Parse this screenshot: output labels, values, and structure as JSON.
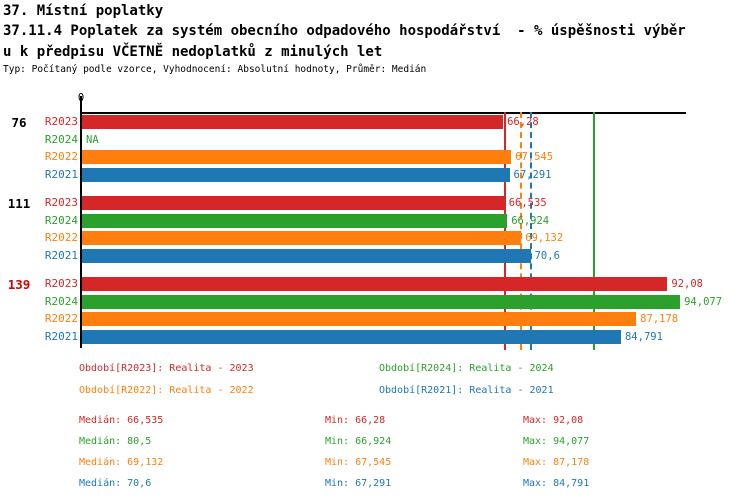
{
  "title": {
    "line1": "37. Místní poplatky",
    "line2": "37.11.4 Poplatek za systém obecního odpadového hospodářství  - % úspěšnosti výběr",
    "line3": "u k předpisu VČETNĚ nedoplatků z minulých let",
    "subtitle": "Typ: Počítaný podle vzorce, Vyhodnocení: Absolutní hodnoty, Průměr: Medián"
  },
  "colors": {
    "R2023": "#d62728",
    "R2024": "#2ca02c",
    "R2022": "#ff7f0e",
    "R2021": "#1f77b4",
    "axis": "#000000",
    "group_highlight": "#dd0000"
  },
  "chart_data": {
    "type": "bar",
    "orientation": "horizontal",
    "x_axis": {
      "tick_label": "0",
      "min": 0,
      "max": 95
    },
    "series_order": [
      "R2023",
      "R2024",
      "R2022",
      "R2021"
    ],
    "groups": [
      {
        "label": "76",
        "label_color": "#000000",
        "bars": [
          {
            "series": "R2023",
            "value": 66.28,
            "display": "66,28"
          },
          {
            "series": "R2024",
            "value": null,
            "display": "NA"
          },
          {
            "series": "R2022",
            "value": 67.545,
            "display": "67,545"
          },
          {
            "series": "R2021",
            "value": 67.291,
            "display": "67,291"
          }
        ]
      },
      {
        "label": "111",
        "label_color": "#000000",
        "bars": [
          {
            "series": "R2023",
            "value": 66.535,
            "display": "66,535"
          },
          {
            "series": "R2024",
            "value": 66.924,
            "display": "66,924"
          },
          {
            "series": "R2022",
            "value": 69.132,
            "display": "69,132"
          },
          {
            "series": "R2021",
            "value": 70.6,
            "display": "70,6"
          }
        ]
      },
      {
        "label": "139",
        "label_color": "#dd0000",
        "bars": [
          {
            "series": "R2023",
            "value": 92.08,
            "display": "92,08"
          },
          {
            "series": "R2024",
            "value": 94.077,
            "display": "94,077"
          },
          {
            "series": "R2022",
            "value": 87.178,
            "display": "87,178"
          },
          {
            "series": "R2021",
            "value": 84.791,
            "display": "84,791"
          }
        ]
      }
    ],
    "median_lines": [
      {
        "series": "R2023",
        "value": 66.535,
        "style": "solid"
      },
      {
        "series": "R2022",
        "value": 69.132,
        "style": "dashed"
      },
      {
        "series": "R2021",
        "value": 70.6,
        "style": "dashed"
      },
      {
        "series": "R2024",
        "value": 80.5,
        "style": "solid"
      }
    ]
  },
  "legend": [
    {
      "series": "R2023",
      "label": "Období[R2023]: Realita - 2023"
    },
    {
      "series": "R2024",
      "label": "Období[R2024]: Realita - 2024"
    },
    {
      "series": "R2022",
      "label": "Období[R2022]: Realita - 2022"
    },
    {
      "series": "R2021",
      "label": "Období[R2021]: Realita - 2021"
    }
  ],
  "stats_labels": {
    "median": "Medián",
    "min": "Min",
    "max": "Max"
  },
  "stats": [
    {
      "series": "R2023",
      "median": "66,535",
      "min": "66,28",
      "max": "92,08"
    },
    {
      "series": "R2024",
      "median": "80,5",
      "min": "66,924",
      "max": "94,077"
    },
    {
      "series": "R2022",
      "median": "69,132",
      "min": "67,545",
      "max": "87,178"
    },
    {
      "series": "R2021",
      "median": "70,6",
      "min": "67,291",
      "max": "84,791"
    }
  ]
}
